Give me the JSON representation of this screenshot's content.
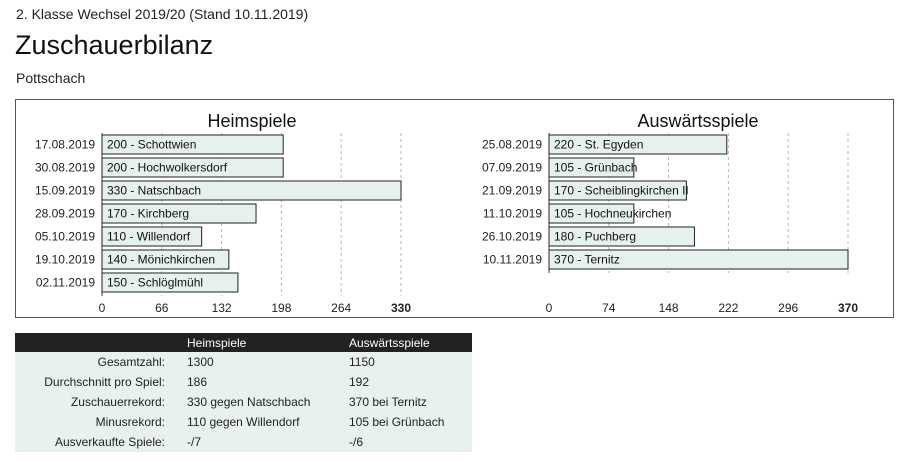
{
  "header": {
    "league": "2. Klasse Wechsel 2019/20 (Stand 10.11.2019)",
    "title": "Zuschauerbilanz",
    "team": "Pottschach"
  },
  "chart_data": [
    {
      "type": "bar",
      "orientation": "horizontal",
      "title": "Heimspiele",
      "dates": [
        "17.08.2019",
        "30.08.2019",
        "15.09.2019",
        "28.09.2019",
        "05.10.2019",
        "19.10.2019",
        "02.11.2019"
      ],
      "bar_labels": [
        "200 - Schottwien",
        "200 - Hochwolkersdorf",
        "330 - Natschbach",
        "170 - Kirchberg",
        "110 - Willendorf",
        "140 - Mönichkirchen",
        "150 - Schlöglmühl"
      ],
      "values": [
        200,
        200,
        330,
        170,
        110,
        140,
        150
      ],
      "xlim": [
        0,
        330
      ],
      "ticks": [
        "0",
        "66",
        "132",
        "198",
        "264",
        "330"
      ],
      "grid": true
    },
    {
      "type": "bar",
      "orientation": "horizontal",
      "title": "Auswärtsspiele",
      "dates": [
        "25.08.2019",
        "07.09.2019",
        "21.09.2019",
        "11.10.2019",
        "26.10.2019",
        "10.11.2019"
      ],
      "bar_labels": [
        "220 - St. Egyden",
        "105 - Grünbach",
        "170 - Scheiblingkirchen II",
        "105 - Hochneukirchen",
        "180 - Puchberg",
        "370 - Ternitz"
      ],
      "values": [
        220,
        105,
        170,
        105,
        180,
        370
      ],
      "xlim": [
        0,
        370
      ],
      "ticks": [
        "0",
        "74",
        "148",
        "222",
        "296",
        "370"
      ],
      "grid": true
    }
  ],
  "colors": {
    "bar_fill": "#e6f1ec",
    "bar_stroke": "#222222",
    "grid": "#b5b5b5"
  },
  "stats": {
    "headers": [
      "",
      "Heimspiele",
      "Auswärtsspiele"
    ],
    "rows": [
      [
        "Gesamtzahl:",
        "1300",
        "1150"
      ],
      [
        "Durchschnitt pro Spiel:",
        "186",
        "192"
      ],
      [
        "Zuschauerrekord:",
        "330 gegen Natschbach",
        "370 bei Ternitz"
      ],
      [
        "Minusrekord:",
        "110 gegen Willendorf",
        "105 bei Grünbach"
      ],
      [
        "Ausverkaufte Spiele:",
        "-/7",
        "-/6"
      ]
    ]
  }
}
